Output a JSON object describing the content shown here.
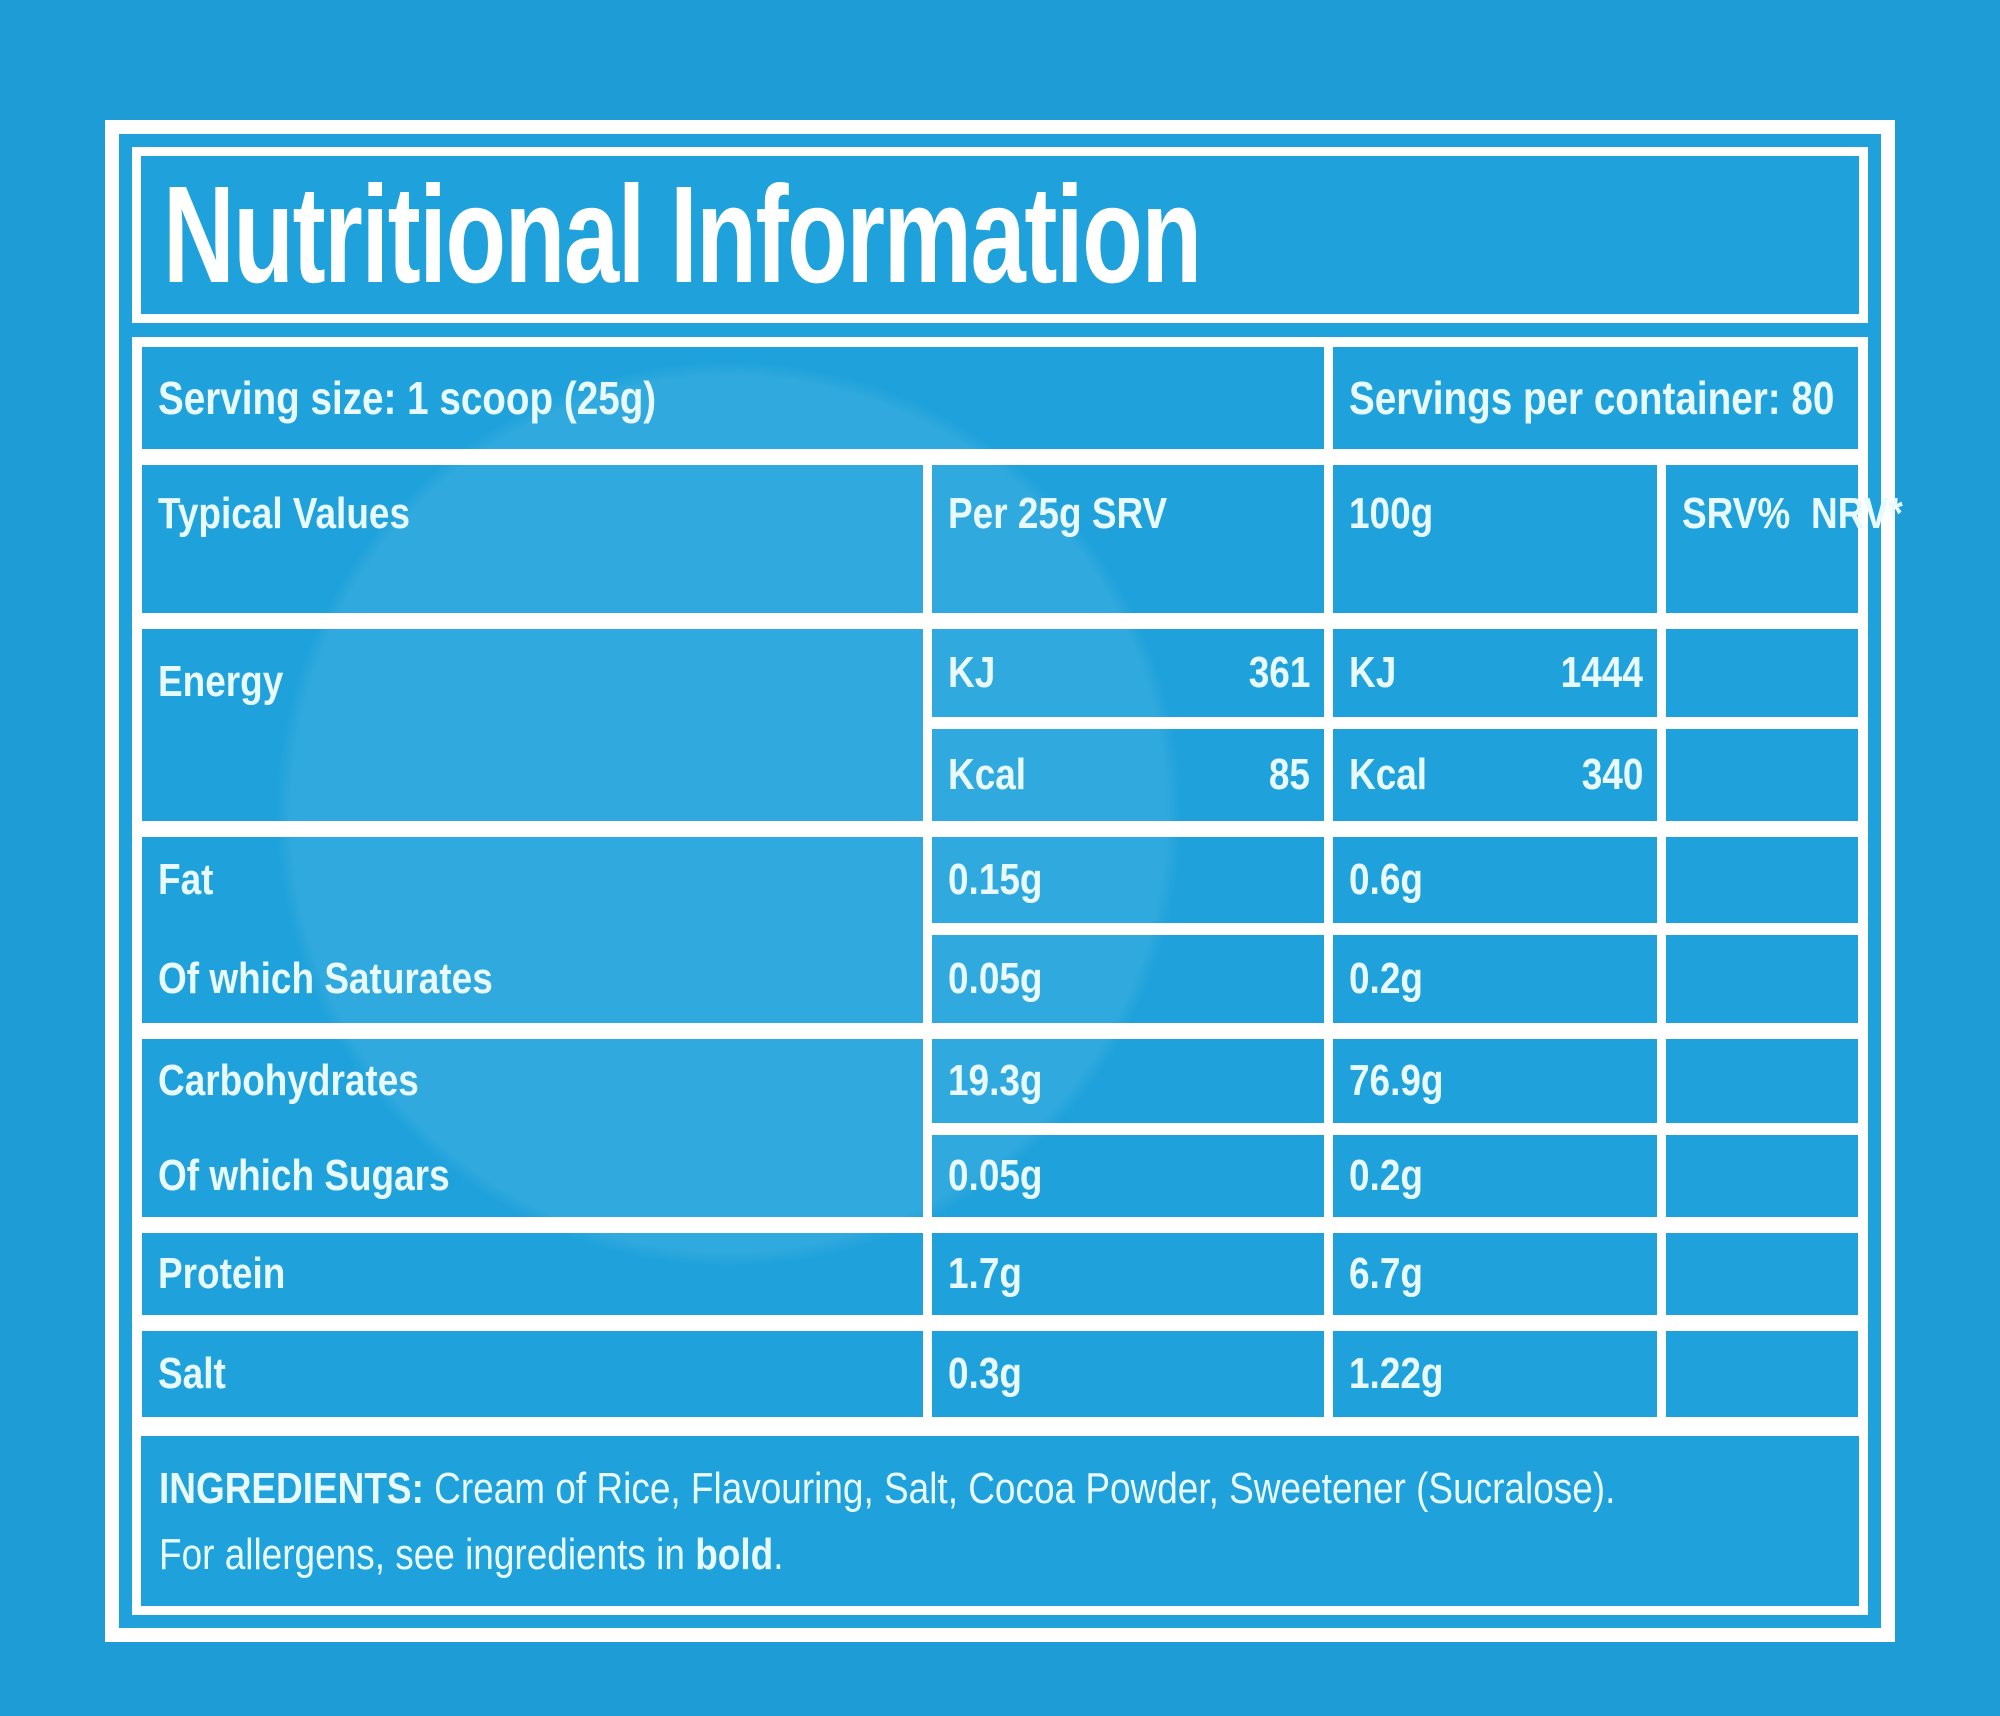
{
  "colors": {
    "background": "#1E9CD6",
    "panel": "#1FA2DB",
    "line": "#FFFFFF",
    "text": "#E8FAFF",
    "title": "#FFFFFF"
  },
  "label": {
    "title": "Nutritional Information",
    "serving_size": "Serving size: 1 scoop (25g)",
    "servings_per_container": "Servings per container: 80",
    "columns": {
      "typical_values": "Typical Values",
      "per_srv": "Per 25g SRV",
      "per_100g": "100g",
      "nrv_line1": "SRV%",
      "nrv_line2": "NRV*"
    },
    "energy": {
      "name": "Energy",
      "rows": [
        {
          "unit": "KJ",
          "srv": "361",
          "per100_unit": "KJ",
          "per100": "1444",
          "nrv": ""
        },
        {
          "unit": "Kcal",
          "srv": "85",
          "per100_unit": "Kcal",
          "per100": "340",
          "nrv": ""
        }
      ]
    },
    "nutrients": [
      {
        "name": "Fat",
        "srv": "0.15g",
        "per100": "0.6g",
        "nrv": ""
      },
      {
        "name": "Of which Saturates",
        "srv": "0.05g",
        "per100": "0.2g",
        "nrv": ""
      },
      {
        "name": "Carbohydrates",
        "srv": "19.3g",
        "per100": "76.9g",
        "nrv": ""
      },
      {
        "name": "Of which Sugars",
        "srv": "0.05g",
        "per100": "0.2g",
        "nrv": ""
      },
      {
        "name": "Protein",
        "srv": "1.7g",
        "per100": "6.7g",
        "nrv": ""
      },
      {
        "name": "Salt",
        "srv": "0.3g",
        "per100": "1.22g",
        "nrv": ""
      }
    ],
    "ingredients": {
      "heading": "INGREDIENTS:",
      "list": " Cream of Rice, Flavouring, Salt, Cocoa Powder, Sweetener (Sucralose).",
      "allergen_prefix": "For allergens, see ingredients in ",
      "allergen_bold": "bold",
      "allergen_suffix": "."
    }
  }
}
